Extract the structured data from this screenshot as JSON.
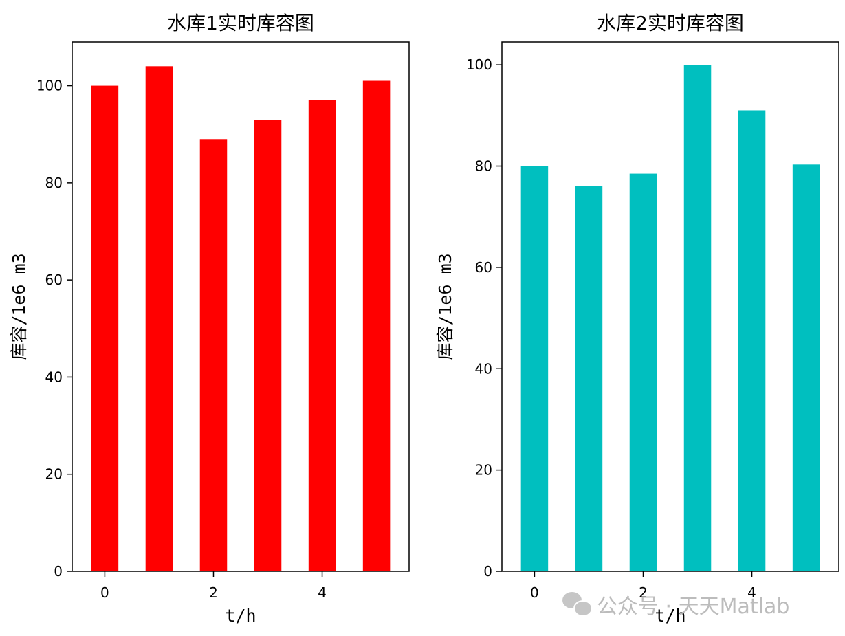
{
  "chart_data": [
    {
      "type": "bar",
      "title": "水库1实时库容图",
      "xlabel": "t/h",
      "ylabel": "库容/1e6 m3",
      "categories": [
        0,
        1,
        2,
        3,
        4,
        5
      ],
      "values": [
        100,
        104,
        89,
        93,
        97,
        101
      ],
      "color": "#ff0000",
      "xticks": [
        0,
        2,
        4
      ],
      "xlim": [
        -0.6,
        5.6
      ],
      "yticks": [
        0,
        20,
        40,
        60,
        80,
        100
      ],
      "ylim": [
        0,
        109
      ],
      "grid": false
    },
    {
      "type": "bar",
      "title": "水库2实时库容图",
      "xlabel": "t/h",
      "ylabel": "库容/1e6 m3",
      "categories": [
        0,
        1,
        2,
        3,
        4,
        5
      ],
      "values": [
        80,
        76,
        78.5,
        100,
        91,
        80.3
      ],
      "color": "#00bfbf",
      "xticks": [
        0,
        2,
        4
      ],
      "xlim": [
        -0.6,
        5.6
      ],
      "yticks": [
        0,
        20,
        40,
        60,
        80,
        100
      ],
      "ylim": [
        0,
        104.5
      ],
      "grid": false
    }
  ],
  "watermark": {
    "text": "公众号 · 天天Matlab",
    "icon": "wechat-icon"
  }
}
